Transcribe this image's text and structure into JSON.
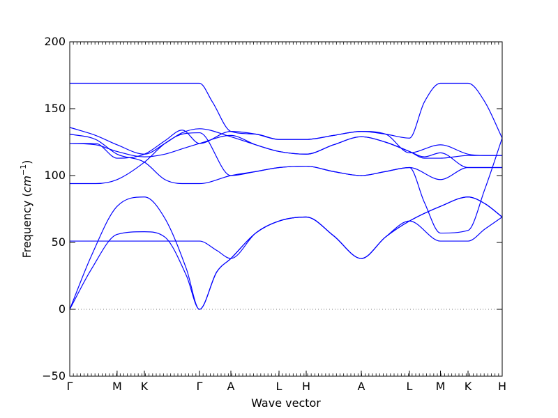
{
  "chart_data": {
    "type": "line",
    "xlabel": "Wave vector",
    "ylabel": "Frequency",
    "ylabel_unit_base": "cm",
    "ylabel_unit_exp": "−1",
    "ylim": [
      -50,
      200
    ],
    "yticks": [
      -50,
      0,
      50,
      100,
      150,
      200
    ],
    "x_range": [
      0,
      1
    ],
    "zero_line": {
      "y": 0,
      "style": "dotted"
    },
    "colors": {
      "bands": "#0000ff",
      "axes": "#000000",
      "zero_line": "#777777"
    },
    "high_symmetry_points": [
      {
        "label": "Γ",
        "x": 0.0
      },
      {
        "label": "M",
        "x": 0.1095
      },
      {
        "label": "K",
        "x": 0.1726
      },
      {
        "label": "Γ",
        "x": 0.3
      },
      {
        "label": "A",
        "x": 0.3726
      },
      {
        "label": "L",
        "x": 0.4839
      },
      {
        "label": "H",
        "x": 0.5468
      },
      {
        "label": "A",
        "x": 0.6742
      },
      {
        "label": "L",
        "x": 0.7855
      },
      {
        "label": "M",
        "x": 0.8573
      },
      {
        "label": "K",
        "x": 0.921
      },
      {
        "label": "H",
        "x": 1.0
      }
    ],
    "bands": [
      {
        "x": [
          0,
          0.05,
          0.1095,
          0.1726,
          0.22,
          0.27,
          0.3,
          0.34,
          0.3726,
          0.43,
          0.4839,
          0.5468,
          0.61,
          0.6742,
          0.73,
          0.7855,
          0.8573,
          0.921,
          0.96,
          1.0
        ],
        "y": [
          0,
          30,
          56,
          58,
          54,
          25,
          0,
          28,
          38,
          57,
          66,
          69,
          55,
          38,
          54,
          66,
          51,
          51,
          60,
          69
        ]
      },
      {
        "x": [
          0,
          0.05,
          0.1095,
          0.1726,
          0.22,
          0.27,
          0.3,
          0.34,
          0.3726,
          0.43,
          0.4839,
          0.5468,
          0.61,
          0.6742,
          0.73,
          0.7855,
          0.8573,
          0.921,
          0.96,
          1.0
        ],
        "y": [
          0,
          40,
          77,
          84,
          68,
          30,
          0,
          28,
          38,
          57,
          66,
          69,
          55,
          38,
          54,
          66,
          77,
          84,
          79,
          69
        ]
      },
      {
        "x": [
          0,
          0.1095,
          0.1726,
          0.22,
          0.27,
          0.3,
          0.34,
          0.3726,
          0.43,
          0.4839,
          0.5468,
          0.61,
          0.6742,
          0.73,
          0.7855,
          0.8573,
          0.921,
          0.96,
          1.0
        ],
        "y": [
          51,
          51,
          51,
          51,
          51,
          51,
          44,
          38,
          57,
          66,
          69,
          55,
          38,
          54,
          66,
          77,
          84,
          79,
          69
        ]
      },
      {
        "x": [
          0,
          0.06,
          0.1095,
          0.1726,
          0.22,
          0.26,
          0.3,
          0.3726,
          0.43,
          0.4839,
          0.5468,
          0.61,
          0.6742,
          0.73,
          0.7855,
          0.82,
          0.8573,
          0.921,
          0.96,
          1.0
        ],
        "y": [
          94,
          94,
          97,
          110,
          124,
          131,
          132,
          100,
          103,
          106,
          107,
          103,
          100,
          103,
          106,
          80,
          57,
          59,
          90,
          128
        ]
      },
      {
        "x": [
          0,
          0.06,
          0.1095,
          0.1726,
          0.22,
          0.26,
          0.3,
          0.3726,
          0.43,
          0.4839,
          0.5468,
          0.61,
          0.6742,
          0.73,
          0.7855,
          0.8573,
          0.921,
          0.96,
          1.0
        ],
        "y": [
          131,
          127,
          116,
          110,
          97,
          94,
          94,
          100,
          103,
          106,
          107,
          103,
          100,
          103,
          106,
          97,
          106,
          106,
          106
        ]
      },
      {
        "x": [
          0,
          0.06,
          0.1095,
          0.1726,
          0.22,
          0.26,
          0.3,
          0.3726,
          0.43,
          0.4839,
          0.5468,
          0.61,
          0.6742,
          0.73,
          0.7855,
          0.82,
          0.8573,
          0.921,
          0.96,
          1.0
        ],
        "y": [
          124,
          123,
          118,
          114,
          116,
          120,
          124,
          130,
          123,
          118,
          116,
          123,
          129,
          125,
          118,
          114,
          117,
          106,
          106,
          106
        ]
      },
      {
        "x": [
          0,
          0.06,
          0.1095,
          0.1726,
          0.22,
          0.26,
          0.3,
          0.3726,
          0.43,
          0.4839,
          0.5468,
          0.61,
          0.6742,
          0.73,
          0.7855,
          0.82,
          0.8573,
          0.921,
          0.96,
          1.0
        ],
        "y": [
          136,
          130,
          123,
          116,
          124,
          132,
          135,
          129,
          123,
          118,
          116,
          123,
          129,
          125,
          118,
          113,
          113,
          115,
          115,
          115
        ]
      },
      {
        "x": [
          0,
          0.06,
          0.1095,
          0.1726,
          0.22,
          0.26,
          0.3,
          0.3726,
          0.43,
          0.4839,
          0.5468,
          0.61,
          0.6742,
          0.73,
          0.7855,
          0.8573,
          0.921,
          0.96,
          1.0
        ],
        "y": [
          124,
          124,
          113,
          116,
          126,
          134,
          124,
          133,
          131,
          127,
          127,
          130,
          133,
          131,
          117,
          123,
          116,
          115,
          115
        ]
      },
      {
        "x": [
          0,
          0.1095,
          0.1726,
          0.22,
          0.25,
          0.3,
          0.33,
          0.3726,
          0.43,
          0.4839,
          0.5468,
          0.61,
          0.6742,
          0.73,
          0.7855,
          0.82,
          0.8573,
          0.921,
          0.96,
          1.0
        ],
        "y": [
          169,
          169,
          169,
          169,
          169,
          169,
          155,
          133,
          131,
          127,
          127,
          130,
          133,
          131,
          128,
          155,
          169,
          169,
          155,
          128
        ]
      }
    ]
  }
}
